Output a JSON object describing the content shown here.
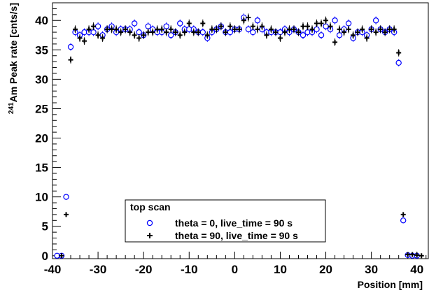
{
  "chart_data": {
    "type": "scatter",
    "xlabel": "Position [mm]",
    "ylabel": {
      "superscript": "241",
      "text": "Am Peak rate [cnts/s]"
    },
    "xlim": [
      -40,
      42.5
    ],
    "ylim": [
      -0.5,
      43
    ],
    "x_ticks": [
      -40,
      -30,
      -20,
      -10,
      0,
      10,
      20,
      30,
      40
    ],
    "y_ticks": [
      0,
      5,
      10,
      15,
      20,
      25,
      30,
      35,
      40
    ],
    "grid": false,
    "legend": {
      "title": "top scan",
      "placement": "bottom-center"
    },
    "series": [
      {
        "name": "theta = 0, live_time = 90 s",
        "marker": "open-circle",
        "color": "#0000ff",
        "x": [
          -39,
          -38,
          -37,
          -36,
          -35,
          -34,
          -33,
          -32,
          -31,
          -30,
          -29,
          -28,
          -27,
          -26,
          -25,
          -24,
          -23,
          -22,
          -21,
          -20,
          -19,
          -18,
          -17,
          -16,
          -15,
          -14,
          -13,
          -12,
          -11,
          -10,
          -9,
          -8,
          -7,
          -6,
          -5,
          -4,
          -3,
          -2,
          -1,
          0,
          1,
          2,
          3,
          4,
          5,
          6,
          7,
          8,
          9,
          10,
          11,
          12,
          13,
          14,
          15,
          16,
          17,
          18,
          19,
          20,
          21,
          22,
          23,
          24,
          25,
          26,
          27,
          28,
          29,
          30,
          31,
          32,
          33,
          34,
          35,
          36,
          37,
          38,
          39,
          40
        ],
        "y": [
          0,
          0,
          10,
          35.5,
          38,
          37.5,
          38,
          38,
          38,
          39,
          37.5,
          38.5,
          39,
          38,
          38.5,
          38.5,
          38.5,
          39.5,
          38,
          37.5,
          39,
          38.5,
          38,
          38,
          39,
          37.5,
          38,
          39.5,
          38.5,
          38.5,
          38.5,
          38,
          38,
          37,
          38,
          38.5,
          39,
          38,
          38,
          38.5,
          38.5,
          40.5,
          38.5,
          38,
          40,
          38.5,
          38,
          38,
          38,
          38,
          38.5,
          38,
          38.5,
          38,
          37.5,
          38,
          38,
          38.5,
          37.5,
          39,
          38.5,
          40,
          37.5,
          38.5,
          39.5,
          37,
          38,
          38,
          37.5,
          38.5,
          40,
          38.5,
          38,
          38.5,
          38,
          32.8,
          6,
          0.1,
          0,
          0
        ]
      },
      {
        "name": "theta = 90, live_time = 90 s",
        "marker": "cross",
        "color": "#000000",
        "x": [
          -38,
          -37,
          -36,
          -35,
          -34,
          -33,
          -32,
          -31,
          -30,
          -29,
          -28,
          -27,
          -26,
          -25,
          -24,
          -23,
          -22,
          -21,
          -20,
          -19,
          -18,
          -17,
          -16,
          -15,
          -14,
          -13,
          -12,
          -11,
          -10,
          -9,
          -8,
          -7,
          -6,
          -5,
          -4,
          -3,
          -2,
          -1,
          0,
          1,
          2,
          3,
          4,
          5,
          6,
          7,
          8,
          9,
          10,
          11,
          12,
          13,
          14,
          15,
          16,
          17,
          18,
          19,
          20,
          21,
          22,
          23,
          24,
          25,
          26,
          27,
          28,
          29,
          30,
          31,
          32,
          33,
          34,
          35,
          36,
          37,
          38,
          39,
          40,
          41
        ],
        "y": [
          0,
          7,
          33.3,
          38.5,
          37,
          36.5,
          38.5,
          39,
          37.5,
          37,
          38.5,
          38.5,
          38.5,
          38,
          38.5,
          38,
          37.5,
          37,
          37.5,
          38,
          38,
          38.5,
          38.5,
          38,
          38.5,
          38,
          37.5,
          38,
          39.5,
          38,
          38,
          39.5,
          37.5,
          38.5,
          38.5,
          39,
          38,
          39,
          38.5,
          38.5,
          40,
          40.5,
          39,
          38.5,
          39,
          37.5,
          38.5,
          38,
          37,
          38,
          38.5,
          38.5,
          38,
          39,
          39,
          38.5,
          39.5,
          39.5,
          40,
          39,
          36.3,
          38.5,
          38,
          38.5,
          37.5,
          38,
          38.5,
          37,
          38.5,
          38,
          38.5,
          38,
          38.5,
          38.5,
          34.5,
          7,
          0.2,
          0.2,
          0.1,
          0
        ]
      }
    ]
  }
}
